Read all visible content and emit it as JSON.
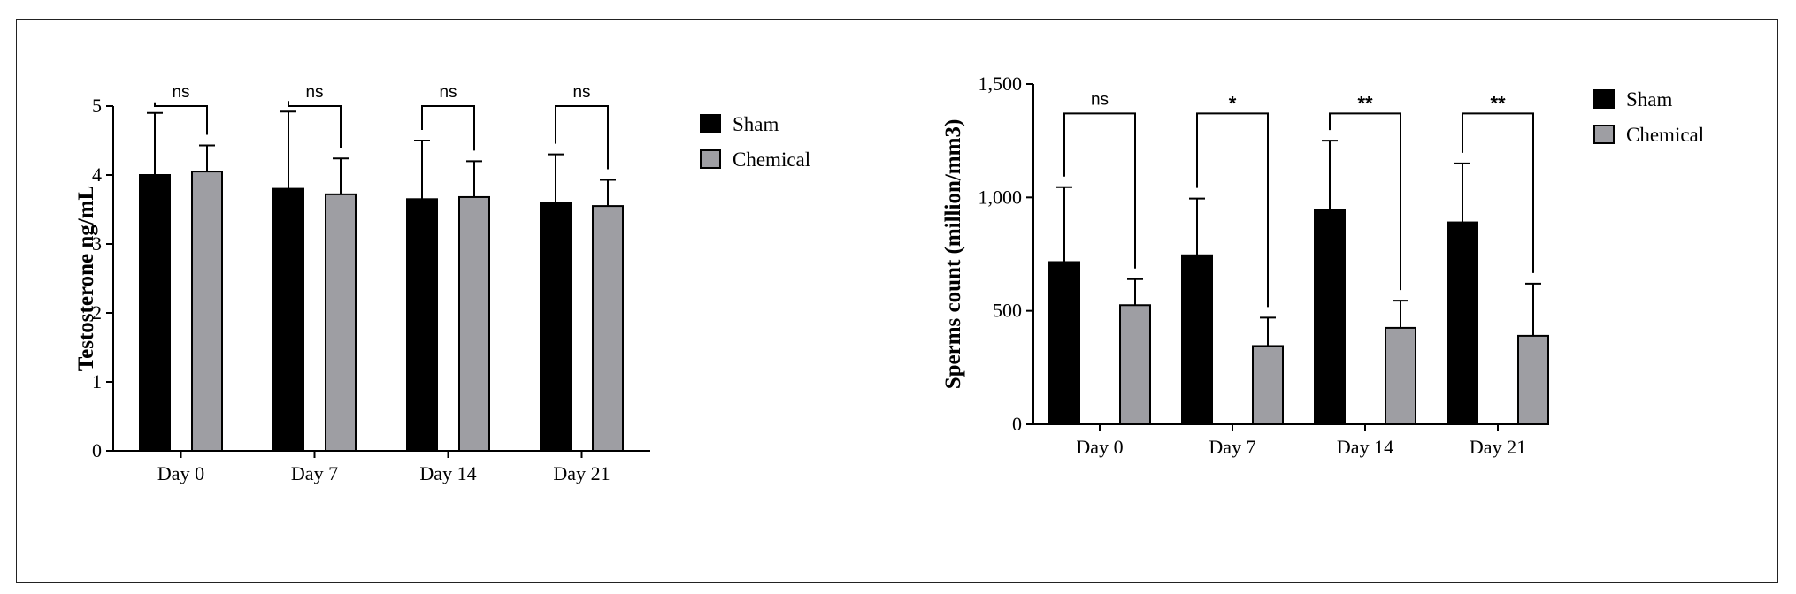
{
  "colors": {
    "sham": "#000000",
    "chemical": "#9e9ea3",
    "stroke": "#000000"
  },
  "chart_data": [
    {
      "type": "bar",
      "categories": [
        "Day 0",
        "Day 7",
        "Day 14",
        "Day 21"
      ],
      "ylabel": "Testosterone ng/mL",
      "ylim": [
        0,
        5
      ],
      "yticks": [
        "0",
        "1",
        "2",
        "3",
        "4",
        "5"
      ],
      "ytick_values": [
        0,
        1,
        2,
        3,
        4,
        5
      ],
      "series": [
        {
          "name": "Sham",
          "values": [
            4.0,
            3.8,
            3.65,
            3.6
          ],
          "errors": [
            0.9,
            1.12,
            0.85,
            0.7
          ]
        },
        {
          "name": "Chemical",
          "values": [
            4.05,
            3.72,
            3.68,
            3.55
          ],
          "errors": [
            0.38,
            0.52,
            0.52,
            0.38
          ]
        }
      ],
      "significance": [
        "ns",
        "ns",
        "ns",
        "ns"
      ],
      "bracket_top": 5.0,
      "legend": [
        "Sham",
        "Chemical"
      ],
      "legend_position": "right"
    },
    {
      "type": "bar",
      "categories": [
        "Day 0",
        "Day 7",
        "Day 14",
        "Day 21"
      ],
      "ylabel": "Sperms count (million/mm3)",
      "ylim": [
        0,
        1500
      ],
      "yticks": [
        "0",
        "500",
        "1,000",
        "1,500"
      ],
      "ytick_values": [
        0,
        500,
        1000,
        1500
      ],
      "series": [
        {
          "name": "Sham",
          "values": [
            715,
            745,
            945,
            890
          ],
          "errors": [
            330,
            250,
            305,
            260
          ]
        },
        {
          "name": "Chemical",
          "values": [
            525,
            345,
            425,
            390
          ],
          "errors": [
            115,
            125,
            120,
            230
          ]
        }
      ],
      "significance": [
        "ns",
        "*",
        "**",
        "**"
      ],
      "bracket_top": 1370,
      "legend": [
        "Sham",
        "Chemical"
      ],
      "legend_position": "right"
    }
  ]
}
